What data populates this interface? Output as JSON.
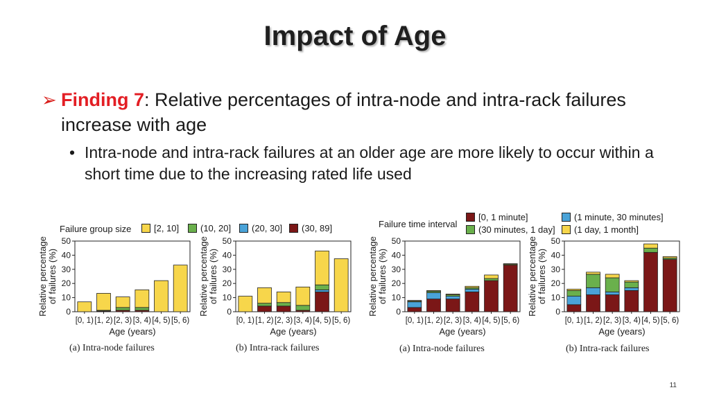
{
  "slide": {
    "title": "Impact of Age",
    "finding_label": "Finding 7",
    "finding_text": ": Relative percentages of intra-node and intra-rack failures increase with age",
    "sub_bullet": "Intra-node and intra-rack failures at an older age are more likely to occur within a short time due to the increasing rated life used",
    "page_number": "11",
    "bullet_glyph": "➢",
    "sub_bullet_glyph": "•"
  },
  "legends": {
    "group_size": {
      "title": "Failure group size",
      "items": [
        {
          "label": "[2, 10]",
          "color": "#f7d64b"
        },
        {
          "label": "(10, 20]",
          "color": "#6ab04c"
        },
        {
          "label": "(20, 30]",
          "color": "#4aa3d8"
        },
        {
          "label": "(30, 89]",
          "color": "#7b1717"
        }
      ]
    },
    "time_interval": {
      "title": "Failure time interval",
      "items": [
        {
          "label": "[0, 1 minute]",
          "color": "#7b1717"
        },
        {
          "label": "(1 minute, 30 minutes]",
          "color": "#4aa3d8"
        },
        {
          "label": "(30 minutes, 1 day]",
          "color": "#6ab04c"
        },
        {
          "label": "(1 day, 1 month]",
          "color": "#f7d64b"
        }
      ]
    }
  },
  "chart_data": [
    {
      "type": "bar",
      "stacked": true,
      "caption": "(a) Intra-node failures",
      "categories": [
        "[0, 1)",
        "[1, 2)",
        "[2, 3)",
        "[3, 4)",
        "[4, 5)",
        "[5, 6)"
      ],
      "xlabel": "Age (years)",
      "ylabel": "Relative percentage of failures (%)",
      "ylim": [
        0,
        50
      ],
      "yticks": [
        0,
        10,
        20,
        30,
        40,
        50
      ],
      "series": [
        {
          "name": "(30, 89]",
          "color": "#7b1717",
          "values": [
            0,
            0.5,
            1,
            1,
            0,
            0
          ]
        },
        {
          "name": "(20, 30]",
          "color": "#4aa3d8",
          "values": [
            0,
            0,
            0,
            0,
            0,
            0
          ]
        },
        {
          "name": "(10, 20]",
          "color": "#6ab04c",
          "values": [
            0,
            0.5,
            2,
            2,
            0,
            0
          ]
        },
        {
          "name": "[2, 10]",
          "color": "#f7d64b",
          "values": [
            7,
            12,
            7.5,
            12.5,
            22,
            33
          ]
        }
      ]
    },
    {
      "type": "bar",
      "stacked": true,
      "caption": "(b) Intra-rack failures",
      "categories": [
        "[0, 1)",
        "[1, 2)",
        "[2, 3)",
        "[3, 4)",
        "[4, 5)",
        "[5, 6)"
      ],
      "xlabel": "Age (years)",
      "ylabel": "Relative percentage of failures (%)",
      "ylim": [
        0,
        50
      ],
      "yticks": [
        0,
        10,
        20,
        30,
        40,
        50
      ],
      "series": [
        {
          "name": "(30, 89]",
          "color": "#7b1717",
          "values": [
            0,
            4,
            4,
            1,
            14,
            0
          ]
        },
        {
          "name": "(20, 30]",
          "color": "#4aa3d8",
          "values": [
            0,
            0,
            0,
            0,
            1.5,
            0
          ]
        },
        {
          "name": "(10, 20]",
          "color": "#6ab04c",
          "values": [
            0,
            2,
            2.5,
            3.5,
            3.5,
            0
          ]
        },
        {
          "name": "[2, 10]",
          "color": "#f7d64b",
          "values": [
            11,
            11,
            7.5,
            13,
            24,
            37.5
          ]
        }
      ]
    },
    {
      "type": "bar",
      "stacked": true,
      "caption": "(a) Intra-node failures",
      "categories": [
        "[0, 1)",
        "[1, 2)",
        "[2, 3)",
        "[3, 4)",
        "[4, 5)",
        "[5, 6)"
      ],
      "xlabel": "Age (years)",
      "ylabel": "Relative percentage of failures (%)",
      "ylim": [
        0,
        50
      ],
      "yticks": [
        0,
        10,
        20,
        30,
        40,
        50
      ],
      "series": [
        {
          "name": "[0, 1 minute]",
          "color": "#7b1717",
          "values": [
            3,
            9,
            9,
            14,
            22,
            33
          ]
        },
        {
          "name": "(1 minute, 30 minutes]",
          "color": "#4aa3d8",
          "values": [
            4,
            4.5,
            2,
            2,
            0,
            0
          ]
        },
        {
          "name": "(30 minutes, 1 day]",
          "color": "#6ab04c",
          "values": [
            0.5,
            1,
            1,
            1,
            1.5,
            0.5
          ]
        },
        {
          "name": "(1 day, 1 month]",
          "color": "#f7d64b",
          "values": [
            0.5,
            0.5,
            0.5,
            1,
            2.5,
            0.5
          ]
        }
      ]
    },
    {
      "type": "bar",
      "stacked": true,
      "caption": "(b) Intra-rack failures",
      "categories": [
        "[0, 1)",
        "[1, 2)",
        "[2, 3)",
        "[3, 4)",
        "[4, 5)",
        "[5, 6)"
      ],
      "xlabel": "Age (years)",
      "ylabel": "Relative percentage of failures (%)",
      "ylim": [
        0,
        50
      ],
      "yticks": [
        0,
        10,
        20,
        30,
        40,
        50
      ],
      "series": [
        {
          "name": "[0, 1 minute]",
          "color": "#7b1717",
          "values": [
            5,
            12,
            12,
            15,
            42,
            37
          ]
        },
        {
          "name": "(1 minute, 30 minutes]",
          "color": "#4aa3d8",
          "values": [
            6,
            5,
            2,
            2,
            0,
            0
          ]
        },
        {
          "name": "(30 minutes, 1 day]",
          "color": "#6ab04c",
          "values": [
            4,
            9.5,
            10,
            4,
            3,
            1
          ]
        },
        {
          "name": "(1 day, 1 month]",
          "color": "#f7d64b",
          "values": [
            1,
            1.5,
            2.5,
            1,
            3,
            1
          ]
        }
      ]
    }
  ]
}
